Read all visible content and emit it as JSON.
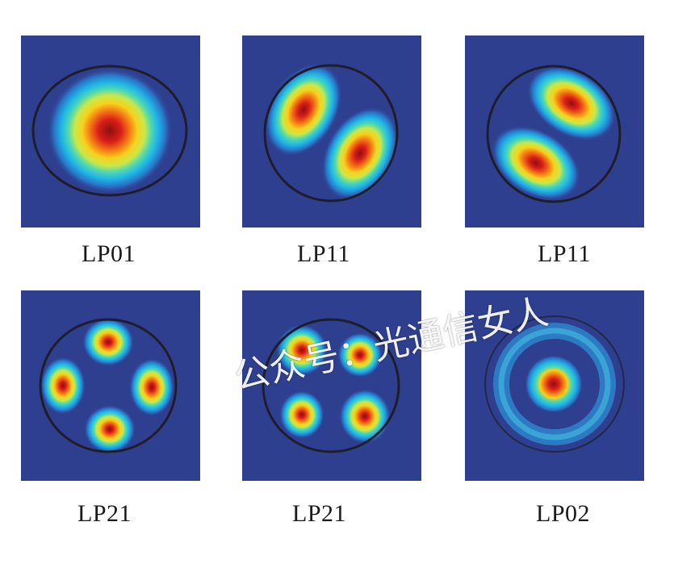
{
  "modes": [
    {
      "label": "LP01",
      "pattern": "fundamental"
    },
    {
      "label": "LP11",
      "pattern": "two-lobe-diagonal-down"
    },
    {
      "label": "LP11",
      "pattern": "two-lobe-diagonal-up"
    },
    {
      "label": "LP21",
      "pattern": "four-lobe-cross"
    },
    {
      "label": "LP21",
      "pattern": "four-lobe-diagonal"
    },
    {
      "label": "LP02",
      "pattern": "center-spot-with-ring"
    }
  ],
  "watermark": "公众号：光通信女人",
  "colors": {
    "background_field": "#2f3f8f",
    "core_boundary": "#1e1e2a",
    "colormap": [
      "#2f3f8f",
      "#2a72c4",
      "#1fb5e8",
      "#4fd9b0",
      "#c8e84a",
      "#f7d21c",
      "#f47a16",
      "#d91e18",
      "#8b1010"
    ]
  }
}
